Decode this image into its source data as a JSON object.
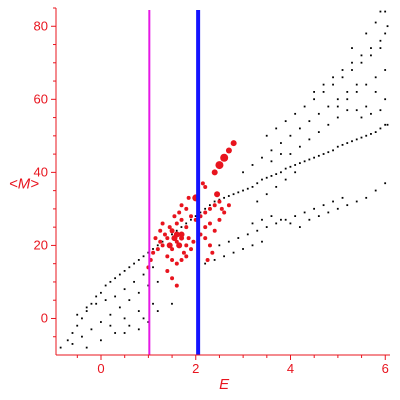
{
  "chart_data": {
    "type": "scatter",
    "title": "",
    "xlabel": "E",
    "ylabel": "<M>",
    "xlim": [
      -0.95,
      6.1
    ],
    "ylim": [
      -10,
      85
    ],
    "x_ticks": [
      "0",
      "2",
      "4",
      "6"
    ],
    "x_tick_values": [
      0,
      2,
      4,
      6
    ],
    "y_ticks": [
      "0",
      "20",
      "40",
      "60",
      "80"
    ],
    "y_tick_values": [
      0,
      20,
      40,
      60,
      80
    ],
    "grid": false,
    "colors": {
      "axis": "#e8141e",
      "background_points": "#000000",
      "highlight_points": "#e8141e",
      "line_magenta": "#e619e6",
      "line_blue": "#1414ff"
    },
    "vertical_lines": [
      {
        "x": 1.02,
        "color": "#e619e6",
        "label": ""
      },
      {
        "x": 2.05,
        "color": "#1414ff",
        "label": ""
      }
    ],
    "series": [
      {
        "kind": "background",
        "color": "#000000",
        "points": [
          [
            -0.85,
            -8
          ],
          [
            -0.7,
            -6
          ],
          [
            -0.6,
            -4
          ],
          [
            -0.5,
            -2
          ],
          [
            -0.4,
            0
          ],
          [
            -0.3,
            2
          ],
          [
            -0.2,
            4
          ],
          [
            -0.1,
            6
          ],
          [
            0.0,
            7
          ],
          [
            0.1,
            9
          ],
          [
            0.2,
            10
          ],
          [
            0.3,
            11
          ],
          [
            0.4,
            12
          ],
          [
            0.5,
            13
          ],
          [
            0.6,
            14
          ],
          [
            0.7,
            15
          ],
          [
            0.8,
            16
          ],
          [
            0.9,
            17
          ],
          [
            1.0,
            18
          ],
          [
            1.1,
            19
          ],
          [
            1.2,
            20
          ],
          [
            1.3,
            21
          ],
          [
            1.4,
            22
          ],
          [
            1.5,
            23
          ],
          [
            1.6,
            24
          ],
          [
            1.7,
            25
          ],
          [
            1.8,
            26
          ],
          [
            1.9,
            27
          ],
          [
            2.0,
            28
          ],
          [
            2.1,
            29
          ],
          [
            2.2,
            30
          ],
          [
            2.3,
            31
          ],
          [
            2.4,
            32
          ],
          [
            2.5,
            32.5
          ],
          [
            2.6,
            33
          ],
          [
            2.7,
            33.5
          ],
          [
            2.8,
            34
          ],
          [
            2.9,
            34.5
          ],
          [
            3.0,
            35
          ],
          [
            3.1,
            35.5
          ],
          [
            3.2,
            36
          ],
          [
            3.3,
            37
          ],
          [
            3.4,
            38
          ],
          [
            3.5,
            38.5
          ],
          [
            3.6,
            39
          ],
          [
            3.7,
            39.5
          ],
          [
            3.8,
            40
          ],
          [
            3.9,
            41
          ],
          [
            4.0,
            41.5
          ],
          [
            4.1,
            42
          ],
          [
            4.2,
            42.5
          ],
          [
            4.3,
            43
          ],
          [
            4.4,
            43.5
          ],
          [
            4.5,
            44
          ],
          [
            4.6,
            44.5
          ],
          [
            4.7,
            45
          ],
          [
            4.8,
            45.5
          ],
          [
            4.9,
            46
          ],
          [
            5.0,
            47
          ],
          [
            5.1,
            47.5
          ],
          [
            5.2,
            48
          ],
          [
            5.3,
            48.5
          ],
          [
            5.4,
            49
          ],
          [
            5.5,
            49.5
          ],
          [
            5.6,
            50
          ],
          [
            5.7,
            50.5
          ],
          [
            5.8,
            51
          ],
          [
            5.9,
            52
          ],
          [
            6.0,
            53
          ],
          [
            6.05,
            53
          ],
          [
            -0.6,
            -7
          ],
          [
            -0.4,
            -5
          ],
          [
            -0.2,
            -3
          ],
          [
            0.0,
            -1
          ],
          [
            0.2,
            1
          ],
          [
            0.4,
            3
          ],
          [
            0.6,
            5
          ],
          [
            0.8,
            7
          ],
          [
            1.0,
            9
          ],
          [
            1.2,
            10
          ],
          [
            -0.3,
            -8
          ],
          [
            0.0,
            -6
          ],
          [
            0.3,
            -4
          ],
          [
            0.6,
            -2
          ],
          [
            0.9,
            0
          ],
          [
            1.2,
            2
          ],
          [
            1.5,
            4
          ],
          [
            -0.5,
            1
          ],
          [
            -0.3,
            3
          ],
          [
            -0.1,
            4
          ],
          [
            0.1,
            5
          ],
          [
            0.3,
            6
          ],
          [
            0.5,
            8
          ],
          [
            0.7,
            10
          ],
          [
            0.9,
            12
          ],
          [
            1.1,
            14
          ],
          [
            0.2,
            -2
          ],
          [
            0.5,
            0
          ],
          [
            0.8,
            2
          ],
          [
            1.1,
            4
          ],
          [
            0.5,
            -4
          ],
          [
            0.8,
            -3
          ],
          [
            1.0,
            -1
          ],
          [
            2.2,
            15
          ],
          [
            2.4,
            16
          ],
          [
            2.6,
            17
          ],
          [
            2.8,
            18
          ],
          [
            3.0,
            19
          ],
          [
            3.2,
            20
          ],
          [
            3.4,
            21
          ],
          [
            2.5,
            20
          ],
          [
            2.7,
            21
          ],
          [
            2.9,
            22
          ],
          [
            3.1,
            23
          ],
          [
            3.3,
            24
          ],
          [
            3.5,
            25
          ],
          [
            3.7,
            26
          ],
          [
            3.9,
            27
          ],
          [
            4.1,
            28
          ],
          [
            4.3,
            29
          ],
          [
            4.5,
            30
          ],
          [
            4.7,
            31
          ],
          [
            4.9,
            32
          ],
          [
            5.1,
            33
          ],
          [
            3.2,
            26
          ],
          [
            3.4,
            27
          ],
          [
            3.6,
            28
          ],
          [
            3.8,
            27
          ],
          [
            4.0,
            26
          ],
          [
            4.2,
            25
          ],
          [
            4.4,
            27
          ],
          [
            4.6,
            28
          ],
          [
            4.8,
            29
          ],
          [
            5.0,
            30
          ],
          [
            5.2,
            31
          ],
          [
            5.4,
            32
          ],
          [
            5.6,
            33
          ],
          [
            5.8,
            35
          ],
          [
            6.0,
            37
          ],
          [
            3.0,
            40
          ],
          [
            3.2,
            42
          ],
          [
            3.4,
            44
          ],
          [
            3.6,
            46
          ],
          [
            3.8,
            48
          ],
          [
            4.0,
            50
          ],
          [
            4.2,
            52
          ],
          [
            4.4,
            54
          ],
          [
            4.6,
            56
          ],
          [
            4.8,
            58
          ],
          [
            5.0,
            60
          ],
          [
            5.2,
            62
          ],
          [
            5.4,
            64
          ],
          [
            3.5,
            50
          ],
          [
            3.7,
            52
          ],
          [
            3.9,
            54
          ],
          [
            4.1,
            56
          ],
          [
            4.3,
            58
          ],
          [
            4.5,
            60
          ],
          [
            4.7,
            62
          ],
          [
            4.9,
            64
          ],
          [
            5.1,
            66
          ],
          [
            5.3,
            68
          ],
          [
            5.5,
            70
          ],
          [
            5.7,
            72
          ],
          [
            5.9,
            74
          ],
          [
            4.5,
            62
          ],
          [
            4.7,
            64
          ],
          [
            4.9,
            66
          ],
          [
            5.1,
            68
          ],
          [
            5.3,
            70
          ],
          [
            5.5,
            72
          ],
          [
            5.7,
            74
          ],
          [
            5.9,
            76
          ],
          [
            6.0,
            78
          ],
          [
            5.0,
            58
          ],
          [
            5.2,
            60
          ],
          [
            5.4,
            62
          ],
          [
            5.6,
            64
          ],
          [
            5.8,
            66
          ],
          [
            6.0,
            68
          ],
          [
            5.3,
            74
          ],
          [
            5.6,
            78
          ],
          [
            5.8,
            81
          ],
          [
            5.9,
            84
          ],
          [
            6.0,
            84
          ],
          [
            6.05,
            80
          ],
          [
            5.5,
            55
          ],
          [
            5.7,
            56
          ],
          [
            5.9,
            57
          ],
          [
            6.0,
            60
          ],
          [
            5.8,
            62
          ],
          [
            5.6,
            58
          ],
          [
            5.4,
            57
          ],
          [
            4.0,
            45
          ],
          [
            4.2,
            47
          ],
          [
            4.4,
            49
          ],
          [
            4.6,
            51
          ],
          [
            4.8,
            53
          ],
          [
            5.0,
            55
          ],
          [
            5.2,
            57
          ],
          [
            3.3,
            32
          ],
          [
            3.5,
            34
          ],
          [
            3.7,
            36
          ],
          [
            3.9,
            38
          ],
          [
            4.1,
            40
          ],
          [
            3.6,
            43
          ],
          [
            3.8,
            45
          ]
        ]
      },
      {
        "kind": "highlight",
        "color": "#e8141e",
        "points": [
          [
            1.3,
            20,
            2
          ],
          [
            1.4,
            22,
            2
          ],
          [
            1.5,
            24,
            2.5
          ],
          [
            1.6,
            21,
            2
          ],
          [
            1.7,
            23,
            3
          ],
          [
            1.8,
            25,
            2
          ],
          [
            1.5,
            19,
            2
          ],
          [
            1.6,
            26,
            2
          ],
          [
            1.7,
            27,
            2
          ],
          [
            1.4,
            17,
            2
          ],
          [
            1.55,
            22,
            3
          ],
          [
            1.65,
            20,
            3
          ],
          [
            1.75,
            18,
            2
          ],
          [
            1.85,
            22,
            2
          ],
          [
            1.45,
            25,
            2
          ],
          [
            1.35,
            23,
            2
          ],
          [
            1.25,
            21,
            2
          ],
          [
            1.2,
            19,
            2
          ],
          [
            1.5,
            16,
            2
          ],
          [
            1.6,
            15,
            2
          ],
          [
            1.7,
            16,
            2
          ],
          [
            1.8,
            17,
            2
          ],
          [
            1.9,
            19,
            2
          ],
          [
            1.95,
            21,
            2
          ],
          [
            1.1,
            18,
            2
          ],
          [
            1.15,
            22,
            2
          ],
          [
            1.3,
            26,
            2
          ],
          [
            1.55,
            28,
            2
          ],
          [
            1.65,
            29,
            2
          ],
          [
            1.8,
            30,
            2
          ],
          [
            1.9,
            28,
            2
          ],
          [
            2.0,
            27,
            2
          ],
          [
            2.1,
            28,
            2
          ],
          [
            2.2,
            29,
            2
          ],
          [
            2.3,
            30,
            2
          ],
          [
            2.4,
            31,
            2
          ],
          [
            2.5,
            32,
            2
          ],
          [
            2.2,
            25,
            2
          ],
          [
            2.3,
            26,
            2
          ],
          [
            2.1,
            23,
            2
          ],
          [
            2.2,
            22,
            2
          ],
          [
            2.3,
            20,
            2
          ],
          [
            2.4,
            24,
            2
          ],
          [
            2.5,
            27,
            2
          ],
          [
            2.6,
            29,
            2
          ],
          [
            2.7,
            31,
            2
          ],
          [
            2.0,
            33,
            3.5
          ],
          [
            2.4,
            40,
            3
          ],
          [
            2.5,
            42,
            4
          ],
          [
            2.6,
            44,
            4
          ],
          [
            2.7,
            46,
            3
          ],
          [
            2.8,
            48,
            3
          ],
          [
            2.15,
            37,
            2
          ],
          [
            2.2,
            36,
            2
          ],
          [
            1.5,
            11,
            2
          ],
          [
            1.6,
            9,
            2
          ],
          [
            1.4,
            13,
            2
          ],
          [
            1.0,
            14,
            2
          ],
          [
            1.05,
            16,
            2
          ],
          [
            2.35,
            18,
            2
          ],
          [
            2.25,
            16,
            2
          ],
          [
            1.7,
            31,
            2
          ],
          [
            1.85,
            33,
            2
          ],
          [
            2.45,
            34,
            3
          ],
          [
            2.55,
            30,
            2
          ],
          [
            1.25,
            24,
            2
          ],
          [
            1.45,
            20,
            3
          ],
          [
            1.6,
            23,
            3
          ],
          [
            1.7,
            22,
            2.5
          ],
          [
            1.8,
            20,
            2
          ]
        ]
      }
    ]
  }
}
